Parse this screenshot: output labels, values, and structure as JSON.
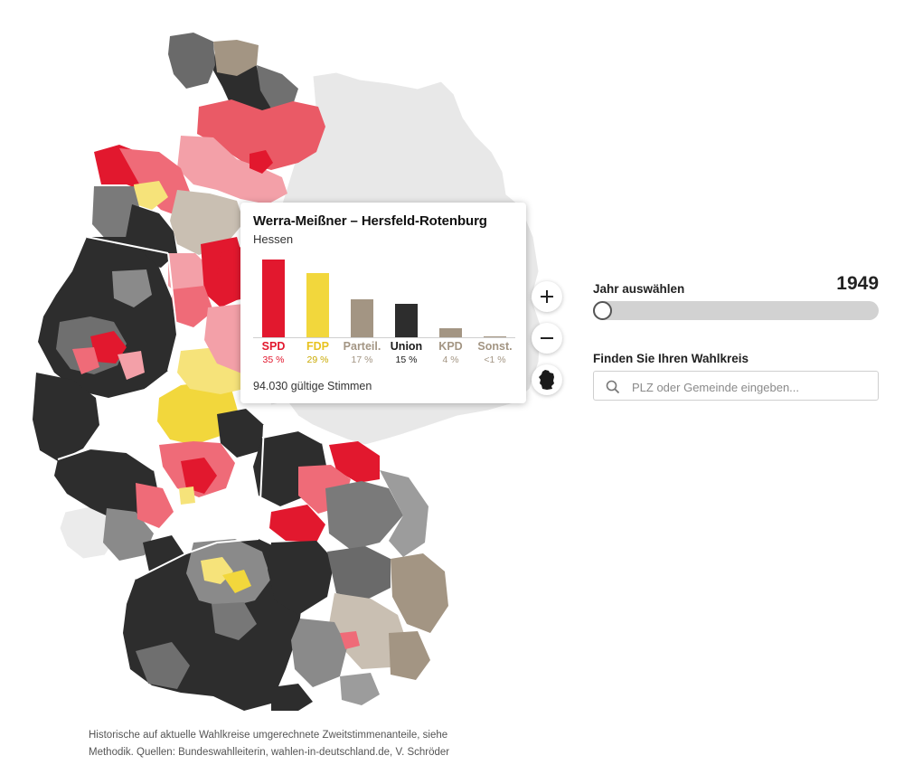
{
  "tooltip": {
    "title": "Werra-Meißner – Hersfeld-Rotenburg",
    "state": "Hessen",
    "parties": [
      {
        "name": "SPD",
        "value": "35",
        "pct": 35.0,
        "color": "#e2182e"
      },
      {
        "name": "FDP",
        "value": "29",
        "pct": 29.0,
        "color": "#f2d73c"
      },
      {
        "name": "Parteil.",
        "value": "17",
        "pct": 17.0,
        "color": "#a39583"
      },
      {
        "name": "Union",
        "value": "15",
        "pct": 15.0,
        "color": "#2d2d2d"
      },
      {
        "name": "KPD",
        "value": "4",
        "pct": 4.0,
        "color": "#a39583"
      },
      {
        "name": "Sonst.",
        "value": "<1",
        "pct": 0.5,
        "color": "#a39583"
      }
    ],
    "percent_symbol": "%",
    "total": "94.030 gültige Stimmen"
  },
  "controls": {
    "zoom_in_icon": "plus-icon",
    "zoom_out_icon": "minus-icon",
    "reset_icon": "germany-outline-icon"
  },
  "year": {
    "label": "Jahr auswählen",
    "value": "1949",
    "position": 0
  },
  "search": {
    "label": "Finden Sie Ihren Wahlkreis",
    "placeholder": "PLZ oder Gemeinde eingeben...",
    "icon": "search-icon"
  },
  "footnote": {
    "line1": "Historische auf aktuelle Wahlkreise umgerechnete Zweitstimmenanteile, siehe",
    "line2": "Methodik. Quellen: Bundeswahlleiterin, wahlen-in-deutschland.de, V. Schröder"
  },
  "legend_colors": {
    "union": "#2d2d2d",
    "spd": "#e2182e",
    "fdp": "#f2d73c",
    "other": "#a39583",
    "inactive": "#e9e9e9"
  }
}
